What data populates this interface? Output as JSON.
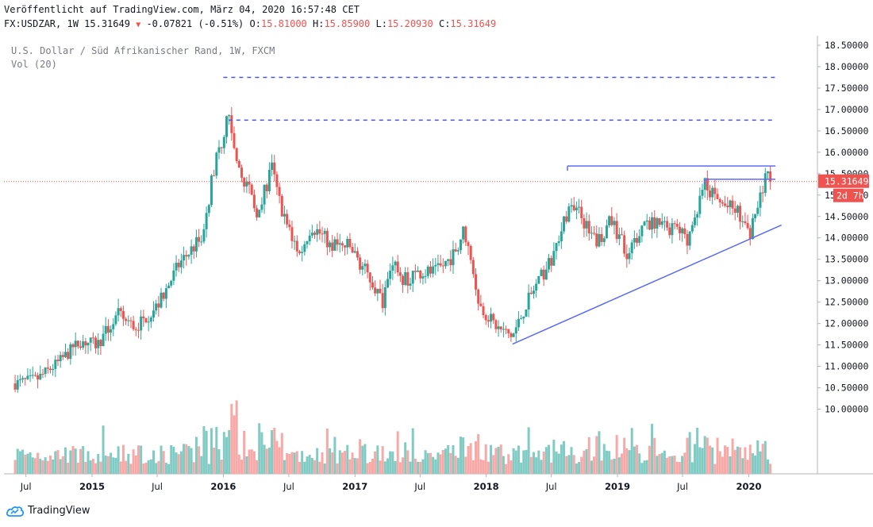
{
  "header": {
    "published": "Veröffentlicht auf TradingView.com, März 04, 2020 16:57:48 CET",
    "symbol_line": "FX:USDZAR, 1W 15.31649",
    "change": "-0.07821 (-0.51%)",
    "o_label": "O:",
    "o_value": "15.81000",
    "h_label": "H:",
    "h_value": "15.85900",
    "l_label": "L:",
    "l_value": "15.20930",
    "c_label": "C:",
    "c_value": "15.31649"
  },
  "legend": {
    "title": "U.S. Dollar / Süd Afrikanischer Rand, 1W, FXCM",
    "volume": "Vol (20)"
  },
  "footer": {
    "brand": "TradingView"
  },
  "colors": {
    "up": "#26a69a",
    "down": "#ef5350",
    "up_vol": "#80cbc4",
    "down_vol": "#f7a9a7",
    "trend": "#5c6bf2",
    "dashed": "#4a56d6",
    "last_price_line": "#ef5350"
  },
  "chart_data": {
    "type": "candlestick",
    "title": "U.S. Dollar / Süd Afrikanischer Rand, 1W, FXCM",
    "symbol": "FX:USDZAR",
    "interval": "1W",
    "ylim": [
      9.6,
      18.7
    ],
    "y_ticks": [
      "18.50000",
      "18.00000",
      "17.50000",
      "17.00000",
      "16.50000",
      "16.00000",
      "15.50000",
      "15.00000",
      "14.50000",
      "14.00000",
      "13.50000",
      "13.00000",
      "12.50000",
      "12.00000",
      "11.50000",
      "11.00000",
      "10.50000",
      "10.00000"
    ],
    "x_ticks": [
      "Jul",
      "2015",
      "Jul",
      "2016",
      "Jul",
      "2017",
      "Jul",
      "2018",
      "Jul",
      "2019",
      "Jul",
      "2020"
    ],
    "last_price": "15.31649",
    "countdown": "2d 7h",
    "price_path": [
      [
        "2014-06-01",
        10.6
      ],
      [
        "2014-08-01",
        10.7
      ],
      [
        "2014-10-01",
        11.1
      ],
      [
        "2014-12-01",
        11.6
      ],
      [
        "2015-01-15",
        11.5
      ],
      [
        "2015-03-15",
        12.2
      ],
      [
        "2015-05-01",
        11.9
      ],
      [
        "2015-07-01",
        12.4
      ],
      [
        "2015-09-01",
        13.4
      ],
      [
        "2015-11-01",
        14.0
      ],
      [
        "2015-12-10",
        15.8
      ],
      [
        "2016-01-15",
        16.8
      ],
      [
        "2016-02-15",
        15.7
      ],
      [
        "2016-04-01",
        14.6
      ],
      [
        "2016-05-15",
        15.6
      ],
      [
        "2016-06-15",
        14.5
      ],
      [
        "2016-08-01",
        13.6
      ],
      [
        "2016-09-01",
        14.3
      ],
      [
        "2016-11-01",
        13.8
      ],
      [
        "2016-12-15",
        13.8
      ],
      [
        "2017-02-01",
        13.2
      ],
      [
        "2017-03-20",
        12.5
      ],
      [
        "2017-04-15",
        13.5
      ],
      [
        "2017-05-15",
        13.0
      ],
      [
        "2017-07-01",
        13.2
      ],
      [
        "2017-08-15",
        13.2
      ],
      [
        "2017-10-01",
        13.6
      ],
      [
        "2017-11-01",
        14.2
      ],
      [
        "2017-12-15",
        12.4
      ],
      [
        "2018-02-01",
        11.9
      ],
      [
        "2018-03-15",
        11.7
      ],
      [
        "2018-05-01",
        12.6
      ],
      [
        "2018-07-01",
        13.5
      ],
      [
        "2018-08-15",
        14.6
      ],
      [
        "2018-09-15",
        14.6
      ],
      [
        "2018-11-01",
        13.9
      ],
      [
        "2018-12-15",
        14.4
      ],
      [
        "2019-02-01",
        13.6
      ],
      [
        "2019-03-15",
        14.4
      ],
      [
        "2019-05-01",
        14.3
      ],
      [
        "2019-06-15",
        14.2
      ],
      [
        "2019-07-15",
        14.0
      ],
      [
        "2019-09-01",
        15.2
      ],
      [
        "2019-10-15",
        14.8
      ],
      [
        "2019-12-01",
        14.6
      ],
      [
        "2020-01-01",
        14.0
      ],
      [
        "2020-02-01",
        14.9
      ],
      [
        "2020-02-20",
        15.7
      ],
      [
        "2020-03-02",
        15.3
      ]
    ],
    "annotations": [
      {
        "type": "dashed_horizontal",
        "price": 17.75,
        "from": "2016-01-01",
        "to": "2020-03-15"
      },
      {
        "type": "dashed_horizontal",
        "price": 16.75,
        "from": "2016-01-15",
        "to": "2020-03-15"
      },
      {
        "type": "horizontal",
        "price": 15.68,
        "from": "2018-08-15",
        "to": "2020-03-15"
      },
      {
        "type": "horizontal",
        "price": 15.37,
        "from": "2019-09-01",
        "to": "2020-03-15"
      },
      {
        "type": "trendline",
        "from": [
          "2018-03-15",
          11.52
        ],
        "to": [
          "2020-04-01",
          14.3
        ]
      }
    ]
  }
}
